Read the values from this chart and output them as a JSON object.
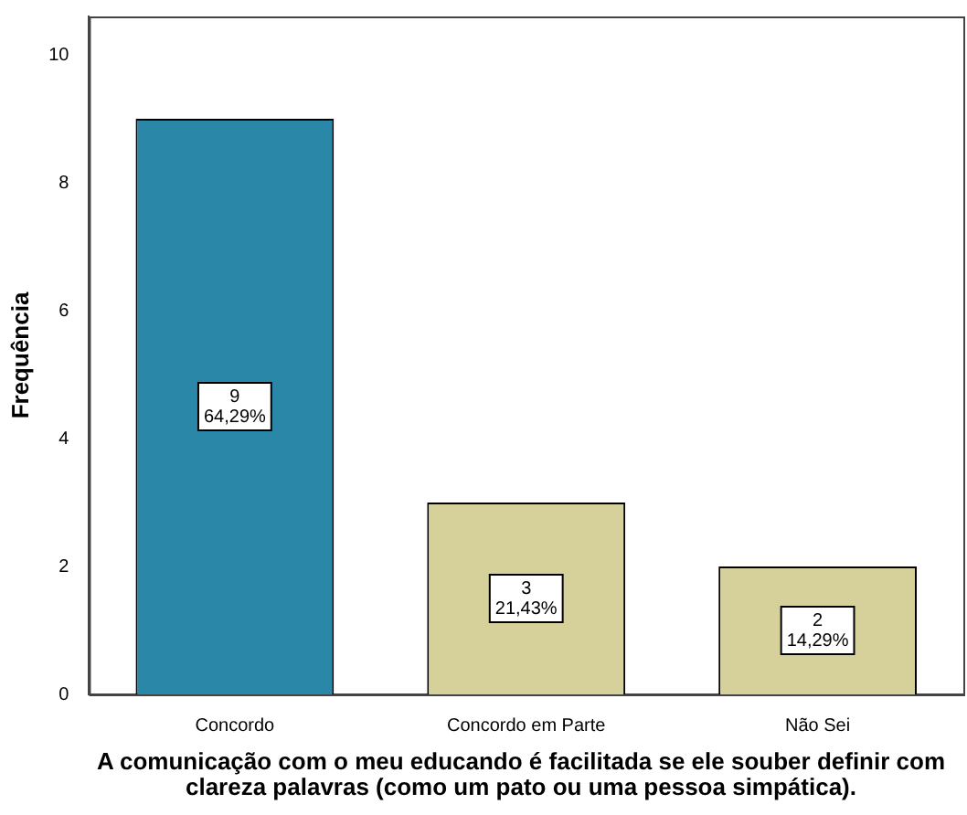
{
  "chart_data": {
    "type": "bar",
    "xlabel": "A comunicação com o meu educando é facilitada se ele souber definir com clareza palavras (como um pato ou uma pessoa simpática).",
    "ylabel": "Frequência",
    "categories": [
      "Concordo",
      "Concordo em Parte",
      "Não Sei"
    ],
    "values": [
      9,
      3,
      2
    ],
    "colors": [
      "#2a87a8",
      "#d6d09a",
      "#d6d09a"
    ],
    "value_labels": [
      "9\n64,29%",
      "3\n21,43%",
      "2\n14,29%"
    ],
    "ylim": [
      0,
      10.6
    ],
    "yticks": [
      0,
      2,
      4,
      6,
      8,
      10
    ],
    "grid": false,
    "legend": false
  }
}
